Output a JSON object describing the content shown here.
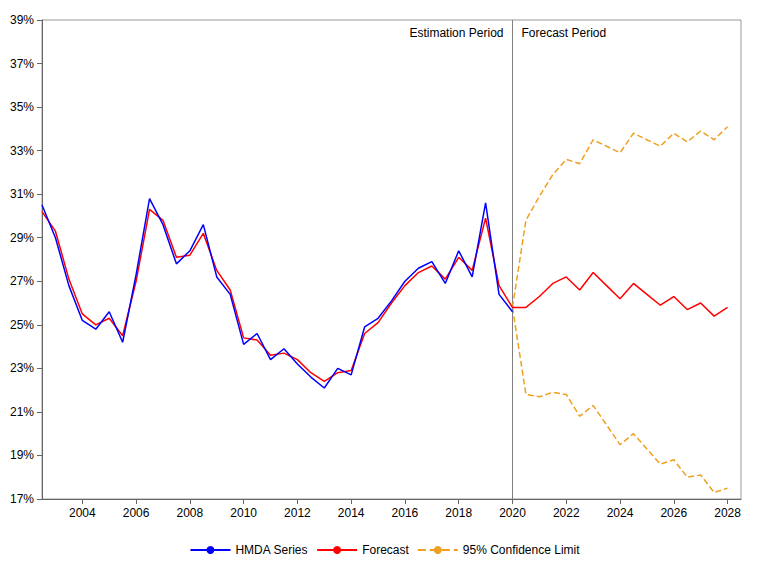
{
  "chart_data": {
    "type": "line",
    "x": [
      2002.5,
      2003,
      2003.5,
      2004,
      2004.5,
      2005,
      2005.5,
      2006,
      2006.5,
      2007,
      2007.5,
      2008,
      2008.5,
      2009,
      2009.5,
      2010,
      2010.5,
      2011,
      2011.5,
      2012,
      2012.5,
      2013,
      2013.5,
      2014,
      2014.5,
      2015,
      2015.5,
      2016,
      2016.5,
      2017,
      2017.5,
      2018,
      2018.5,
      2019,
      2019.5,
      2020,
      2020.5,
      2021,
      2021.5,
      2022,
      2022.5,
      2023,
      2023.5,
      2024,
      2024.5,
      2025,
      2025.5,
      2026,
      2026.5,
      2027,
      2027.5,
      2028
    ],
    "series": [
      {
        "name": "HMDA Series",
        "color": "#0000ff",
        "line_style": "solid",
        "values": [
          30.5,
          29.0,
          26.8,
          25.2,
          24.8,
          25.6,
          24.2,
          27.3,
          30.8,
          29.6,
          27.8,
          28.4,
          29.6,
          27.2,
          26.4,
          24.1,
          24.6,
          23.4,
          23.9,
          23.2,
          22.6,
          22.1,
          23.0,
          22.7,
          24.9,
          25.3,
          26.1,
          27.0,
          27.6,
          27.9,
          26.9,
          28.4,
          27.2,
          30.6,
          26.4,
          25.6,
          null,
          null,
          null,
          null,
          null,
          null,
          null,
          null,
          null,
          null,
          null,
          null,
          null,
          null,
          null,
          null
        ]
      },
      {
        "name": "Forecast",
        "color": "#ff0000",
        "line_style": "solid",
        "values": [
          30.2,
          29.3,
          27.1,
          25.5,
          25.0,
          25.3,
          24.5,
          27.0,
          30.3,
          29.8,
          28.1,
          28.2,
          29.2,
          27.5,
          26.6,
          24.4,
          24.3,
          23.6,
          23.7,
          23.4,
          22.8,
          22.4,
          22.8,
          22.9,
          24.6,
          25.1,
          26.0,
          26.8,
          27.4,
          27.7,
          27.1,
          28.1,
          27.5,
          29.9,
          26.8,
          25.8,
          25.8,
          26.3,
          26.9,
          27.2,
          26.6,
          27.4,
          26.8,
          26.2,
          26.9,
          26.4,
          25.9,
          26.3,
          25.7,
          26.0,
          25.4,
          25.8
        ]
      },
      {
        "name": "95% Confidence Limit",
        "color": "#f0a020",
        "line_style": "dashed",
        "values": [
          null,
          null,
          null,
          null,
          null,
          null,
          null,
          null,
          null,
          null,
          null,
          null,
          null,
          null,
          null,
          null,
          null,
          null,
          null,
          null,
          null,
          null,
          null,
          null,
          null,
          null,
          null,
          null,
          null,
          null,
          null,
          null,
          null,
          null,
          null,
          25.8,
          29.8,
          30.9,
          31.9,
          32.6,
          32.4,
          33.5,
          33.2,
          32.9,
          33.8,
          33.5,
          33.2,
          33.8,
          33.4,
          33.9,
          33.5,
          34.1
        ]
      },
      {
        "name": "95% Confidence Limit",
        "color": "#f0a020",
        "line_style": "dashed",
        "values": [
          null,
          null,
          null,
          null,
          null,
          null,
          null,
          null,
          null,
          null,
          null,
          null,
          null,
          null,
          null,
          null,
          null,
          null,
          null,
          null,
          null,
          null,
          null,
          null,
          null,
          null,
          null,
          null,
          null,
          null,
          null,
          null,
          null,
          null,
          null,
          25.8,
          21.8,
          21.7,
          21.9,
          21.8,
          20.8,
          21.3,
          20.4,
          19.5,
          20.0,
          19.3,
          18.6,
          18.8,
          18.0,
          18.1,
          17.3,
          17.5
        ]
      }
    ],
    "period_boundary": 2020,
    "period_labels": [
      "Estimation Period",
      "Forecast Period"
    ],
    "xlim": [
      2002.5,
      2028.5
    ],
    "xticks": [
      2004,
      2006,
      2008,
      2010,
      2012,
      2014,
      2016,
      2018,
      2020,
      2022,
      2024,
      2026,
      2028
    ],
    "ylim": [
      17,
      39
    ],
    "yticks": [
      {
        "value": 17,
        "label": "17%"
      },
      {
        "value": 19,
        "label": "19%"
      },
      {
        "value": 21,
        "label": "21%"
      },
      {
        "value": 23,
        "label": "23%"
      },
      {
        "value": 25,
        "label": "25%"
      },
      {
        "value": 27,
        "label": "27%"
      },
      {
        "value": 29,
        "label": "29%"
      },
      {
        "value": 31,
        "label": "31%"
      },
      {
        "value": 33,
        "label": "33%"
      },
      {
        "value": 35,
        "label": "35%"
      },
      {
        "value": 37,
        "label": "37%"
      },
      {
        "value": 39,
        "label": "39%"
      }
    ],
    "grid": false,
    "legend": "bottom"
  }
}
